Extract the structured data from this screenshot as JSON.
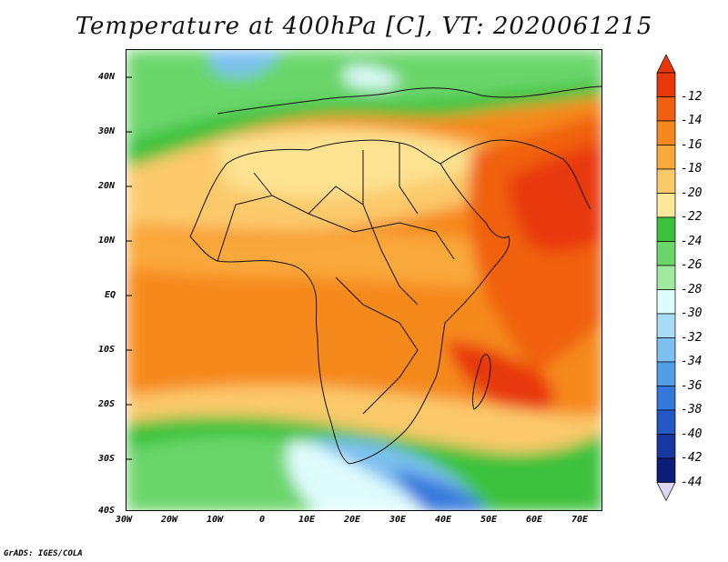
{
  "title": "Temperature at 400hPa [C], VT: 2020061215",
  "footer": "GrADS: IGES/COLA",
  "axes": {
    "lon_labels": [
      "30W",
      "20W",
      "10W",
      "0",
      "10E",
      "20E",
      "30E",
      "40E",
      "50E",
      "60E",
      "70E"
    ],
    "lat_labels": [
      "40N",
      "30N",
      "20N",
      "10N",
      "EQ",
      "10S",
      "20S",
      "30S",
      "40S"
    ]
  },
  "colorbar": {
    "labels": [
      "-12",
      "-14",
      "-16",
      "-18",
      "-20",
      "-22",
      "-24",
      "-26",
      "-28",
      "-30",
      "-32",
      "-34",
      "-36",
      "-38",
      "-40",
      "-42",
      "-44"
    ],
    "colors": [
      "#e8380a",
      "#f06010",
      "#f5891e",
      "#f9a83a",
      "#fbc96a",
      "#fde89b",
      "#3ec23e",
      "#6ad66a",
      "#a0eaa0",
      "#dffcfc",
      "#a8dcf5",
      "#7cc0f0",
      "#509ee8",
      "#3478dc",
      "#2458c4",
      "#1838a0",
      "#0c1c78"
    ]
  }
}
